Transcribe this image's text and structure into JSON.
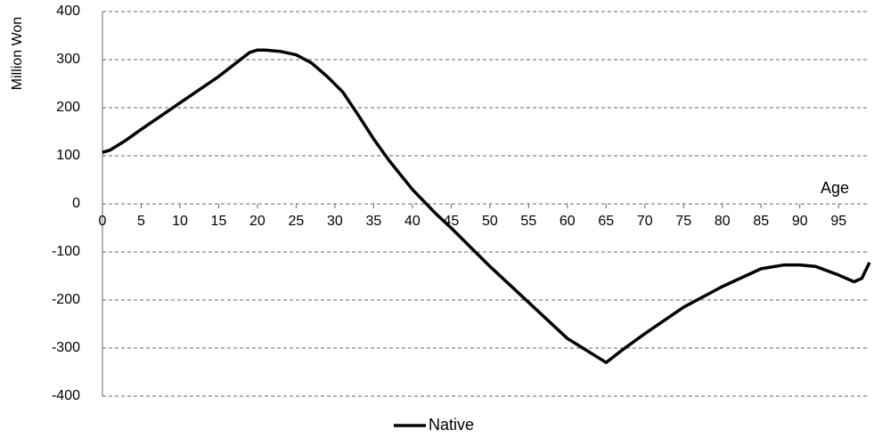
{
  "chart_data": {
    "type": "line",
    "y_label": "Million Won",
    "x_label": "Age",
    "xlim": [
      0,
      99
    ],
    "xticks": [
      0,
      5,
      10,
      15,
      20,
      25,
      30,
      35,
      40,
      45,
      50,
      55,
      60,
      65,
      70,
      75,
      80,
      85,
      90,
      95
    ],
    "ylim": [
      -400,
      400
    ],
    "yticks": [
      -400,
      -300,
      -200,
      -100,
      0,
      100,
      200,
      300,
      400
    ],
    "grid": true,
    "legend": "bottom",
    "x": [
      0,
      1,
      2,
      3,
      5,
      10,
      15,
      19,
      20,
      21,
      23,
      25,
      27,
      29,
      31,
      33,
      35,
      37,
      40,
      43,
      45,
      50,
      55,
      60,
      62,
      65,
      67,
      70,
      75,
      80,
      85,
      88,
      90,
      92,
      95,
      97,
      98,
      99
    ],
    "series": [
      {
        "name": "Native",
        "color": "#000000",
        "values": [
          107,
          112,
          122,
          132,
          155,
          210,
          265,
          315,
          320,
          320,
          317,
          310,
          293,
          265,
          233,
          185,
          135,
          90,
          30,
          -20,
          -50,
          -130,
          -205,
          -280,
          -300,
          -330,
          -305,
          -270,
          -215,
          -172,
          -135,
          -127,
          -127,
          -130,
          -148,
          -162,
          -155,
          -122
        ]
      }
    ]
  }
}
